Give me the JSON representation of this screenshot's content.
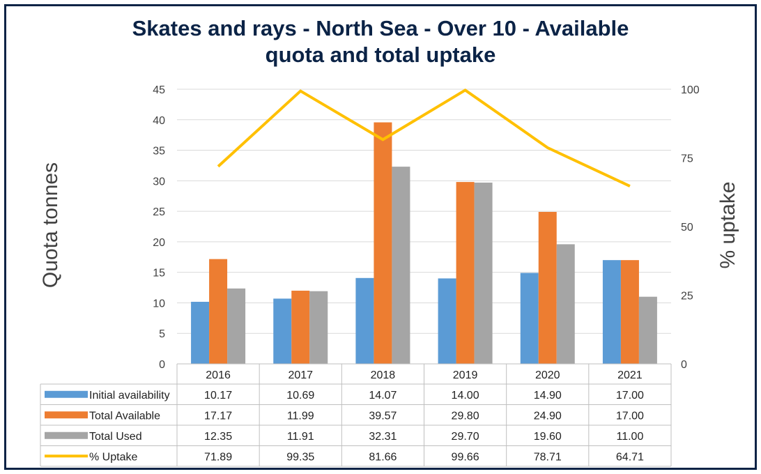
{
  "colors": {
    "frame": "#0b2346",
    "title": "#0b2346",
    "initial": "#5b9bd5",
    "available": "#ed7d31",
    "used": "#a5a5a5",
    "uptake": "#ffc000",
    "grid": "#d9d9d9",
    "table_border": "#bfbfbf"
  },
  "chart_data": {
    "type": "bar",
    "title_line1": "Skates and rays - North Sea - Over 10 - Available",
    "title_line2": "quota and total uptake",
    "ylabel": "Quota tonnes",
    "y2label": "% uptake",
    "ylim": [
      0,
      45
    ],
    "y2lim": [
      0,
      100
    ],
    "yticks": [
      0,
      5,
      10,
      15,
      20,
      25,
      30,
      35,
      40,
      45
    ],
    "y2ticks": [
      0,
      25,
      50,
      75,
      100
    ],
    "grid": true,
    "legend": "data table",
    "categories": [
      "2016",
      "2017",
      "2018",
      "2019",
      "2020",
      "2021"
    ],
    "series": [
      {
        "name": "Initial availability",
        "kind": "bar",
        "color": "#5b9bd5",
        "values": [
          10.17,
          10.69,
          14.07,
          14.0,
          14.9,
          17.0
        ],
        "labels": [
          "10.17",
          "10.69",
          "14.07",
          "14.00",
          "14.90",
          "17.00"
        ]
      },
      {
        "name": "Total Available",
        "kind": "bar",
        "color": "#ed7d31",
        "values": [
          17.17,
          11.99,
          39.57,
          29.8,
          24.9,
          17.0
        ],
        "labels": [
          "17.17",
          "11.99",
          "39.57",
          "29.80",
          "24.90",
          "17.00"
        ]
      },
      {
        "name": "Total Used",
        "kind": "bar",
        "color": "#a5a5a5",
        "values": [
          12.35,
          11.91,
          32.31,
          29.7,
          19.6,
          11.0
        ],
        "labels": [
          "12.35",
          "11.91",
          "32.31",
          "29.70",
          "19.60",
          "11.00"
        ]
      },
      {
        "name": "% Uptake",
        "kind": "line",
        "axis": "secondary",
        "color": "#ffc000",
        "values": [
          71.89,
          99.35,
          81.66,
          99.66,
          78.71,
          64.71
        ],
        "labels": [
          "71.89",
          "99.35",
          "81.66",
          "99.66",
          "78.71",
          "64.71"
        ]
      }
    ]
  }
}
